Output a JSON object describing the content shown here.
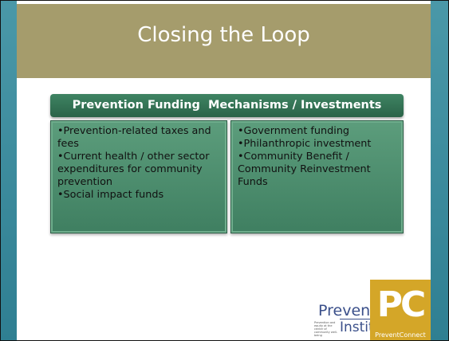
{
  "slide": {
    "title": "Closing the Loop",
    "box": {
      "header": "Prevention Funding  Mechanisms / Investments",
      "left_items": [
        "•Prevention-related taxes and fees",
        "•Current health / other sector expenditures for community prevention",
        "•Social impact funds"
      ],
      "right_items": [
        "•Government funding",
        "•Philanthropic investment",
        "•Community Benefit / Community Reinvestment Funds"
      ]
    },
    "logos": {
      "prevention_institute": {
        "line1": "Prevention",
        "line2": "Institute",
        "tagline": "Prevention and equity at the center of community well-being"
      },
      "prevent_connect": {
        "mark": "PC",
        "name": "PreventConnect"
      }
    }
  }
}
